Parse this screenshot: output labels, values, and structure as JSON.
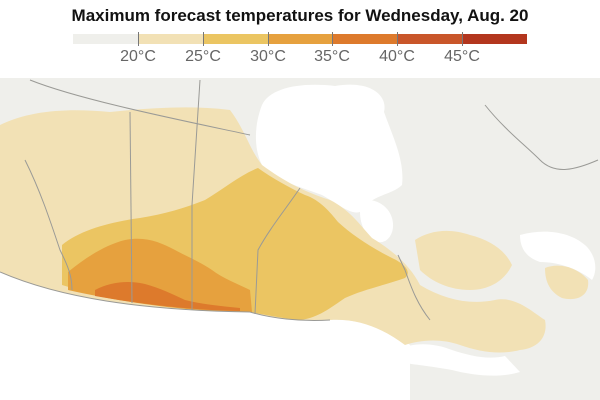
{
  "title": "Maximum forecast temperatures for Wednesday, Aug. 20",
  "legend": {
    "bins": [
      {
        "label": "20°C",
        "color": "#efefeb"
      },
      {
        "label": "25°C",
        "color": "#f2e1b5"
      },
      {
        "label": "30°C",
        "color": "#ebc562"
      },
      {
        "label": "35°C",
        "color": "#e6a13e"
      },
      {
        "label": "40°C",
        "color": "#dd7a2c"
      },
      {
        "label": "45°C",
        "color": "#c9562a"
      },
      {
        "label": "",
        "color": "#b3361e"
      }
    ]
  },
  "map": {
    "land_color": "#efefeb",
    "water_color": "#ffffff",
    "border_color": "#9a9a96"
  }
}
